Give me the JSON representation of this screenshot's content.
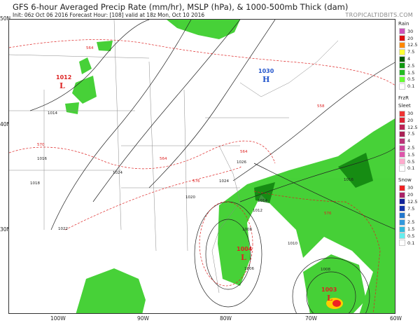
{
  "header": {
    "title": "GFS 6-hour Averaged Precip Rate (mm/hr), MSLP (hPa), & 1000-500mb Thick (dam)",
    "subtitle": "Init: 06z Oct 06 2016   Forecast Hour: [108]   valid at 18z Mon, Oct 10 2016",
    "brand": "TROPICALTIDBITS.COM"
  },
  "axes": {
    "lat": [
      "50N",
      "40N",
      "30N"
    ],
    "lon": [
      "100W",
      "90W",
      "80W",
      "70W",
      "60W"
    ]
  },
  "pressure_centers": [
    {
      "type": "L",
      "value": "1012",
      "color": "#dd2222"
    },
    {
      "type": "H",
      "value": "1030",
      "color": "#2255cc"
    },
    {
      "type": "L",
      "value": "1004",
      "color": "#dd2222"
    },
    {
      "type": "L",
      "value": "1003",
      "color": "#dd2222"
    }
  ],
  "isobar_labels": [
    "1014",
    "1018",
    "1016",
    "1024",
    "1026",
    "1024",
    "1022",
    "1020",
    "1016",
    "1014",
    "1012",
    "1008",
    "1010",
    "1008",
    "1006"
  ],
  "thickness_labels": [
    "564",
    "570",
    "564",
    "576",
    "576",
    "558",
    "564"
  ],
  "legend": {
    "rain": {
      "title": "Rain",
      "levels": [
        "30",
        "20",
        "12.5",
        "7.5",
        "4",
        "2.5",
        "1.5",
        "0.5",
        "0.1"
      ],
      "colors": [
        "#cc55bb",
        "#ee2222",
        "#dd1111",
        "#ff8800",
        "#ffcc00",
        "#ffff33",
        "#005a00",
        "#007700",
        "#119911",
        "#22bb22",
        "#33dd22",
        "#66ff33",
        "#ffffff"
      ]
    },
    "frzr": {
      "title": "FrzR",
      "title2": "Sleet",
      "levels": [
        "30",
        "20",
        "12.5",
        "7.5",
        "4",
        "2.5",
        "1.5",
        "0.5",
        "0.1"
      ],
      "colors": [
        "#ee3333",
        "#dd2233",
        "#cc2244",
        "#bb2255",
        "#aa2255",
        "#aa2266",
        "#bb3377",
        "#cc4499",
        "#dd55aa",
        "#ee77bb",
        "#ffaacc",
        "#ffffff"
      ]
    },
    "snow": {
      "title": "Snow",
      "levels": [
        "30",
        "20",
        "12.5",
        "7.5",
        "4",
        "2.5",
        "1.5",
        "0.5",
        "0.1"
      ],
      "colors": [
        "#ee2222",
        "#aa2266",
        "#112288",
        "#112299",
        "#1133aa",
        "#2255bb",
        "#2277cc",
        "#3399dd",
        "#33bbdd",
        "#44dddd",
        "#66eeee",
        "#ffffff"
      ]
    }
  }
}
